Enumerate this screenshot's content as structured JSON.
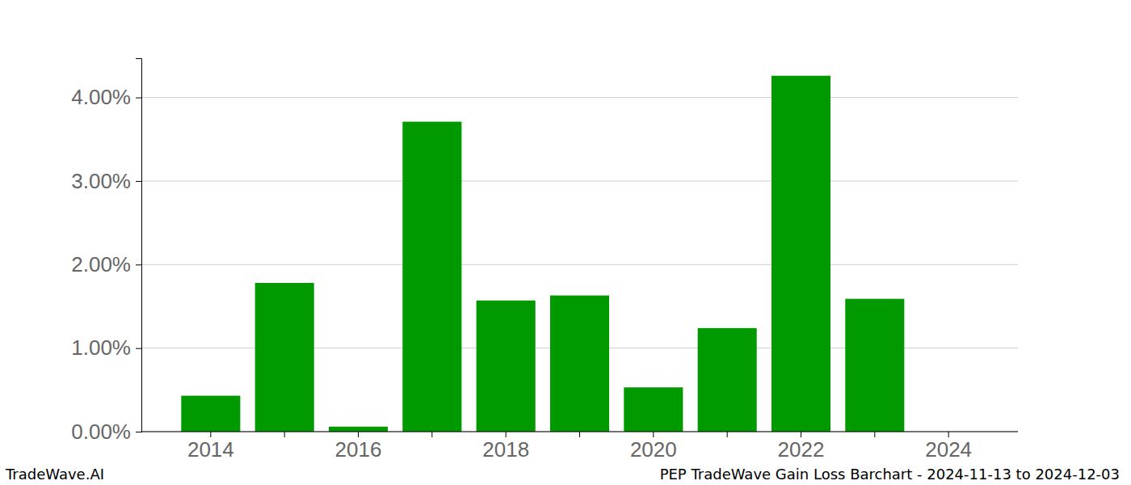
{
  "chart_data": {
    "type": "bar",
    "title": "PEP TradeWave Gain Loss Barchart - 2024-11-13 to 2024-12-03",
    "annotations": [
      "TradeWave.AI"
    ],
    "categories": [
      "2014",
      null,
      "2016",
      null,
      "2018",
      null,
      "2020",
      null,
      "2022",
      null,
      "2024"
    ],
    "values": [
      0.43,
      1.78,
      0.06,
      3.71,
      1.57,
      1.63,
      0.53,
      1.24,
      4.26,
      1.59,
      0
    ],
    "color": "#009900",
    "ylim": [
      0,
      4.47
    ],
    "yticks": [
      {
        "value": 0,
        "label": "0.00%"
      },
      {
        "value": 1,
        "label": "1.00%"
      },
      {
        "value": 2,
        "label": "2.00%"
      },
      {
        "value": 3,
        "label": "3.00%"
      },
      {
        "value": 4,
        "label": "4.00%"
      }
    ],
    "grid": true
  }
}
